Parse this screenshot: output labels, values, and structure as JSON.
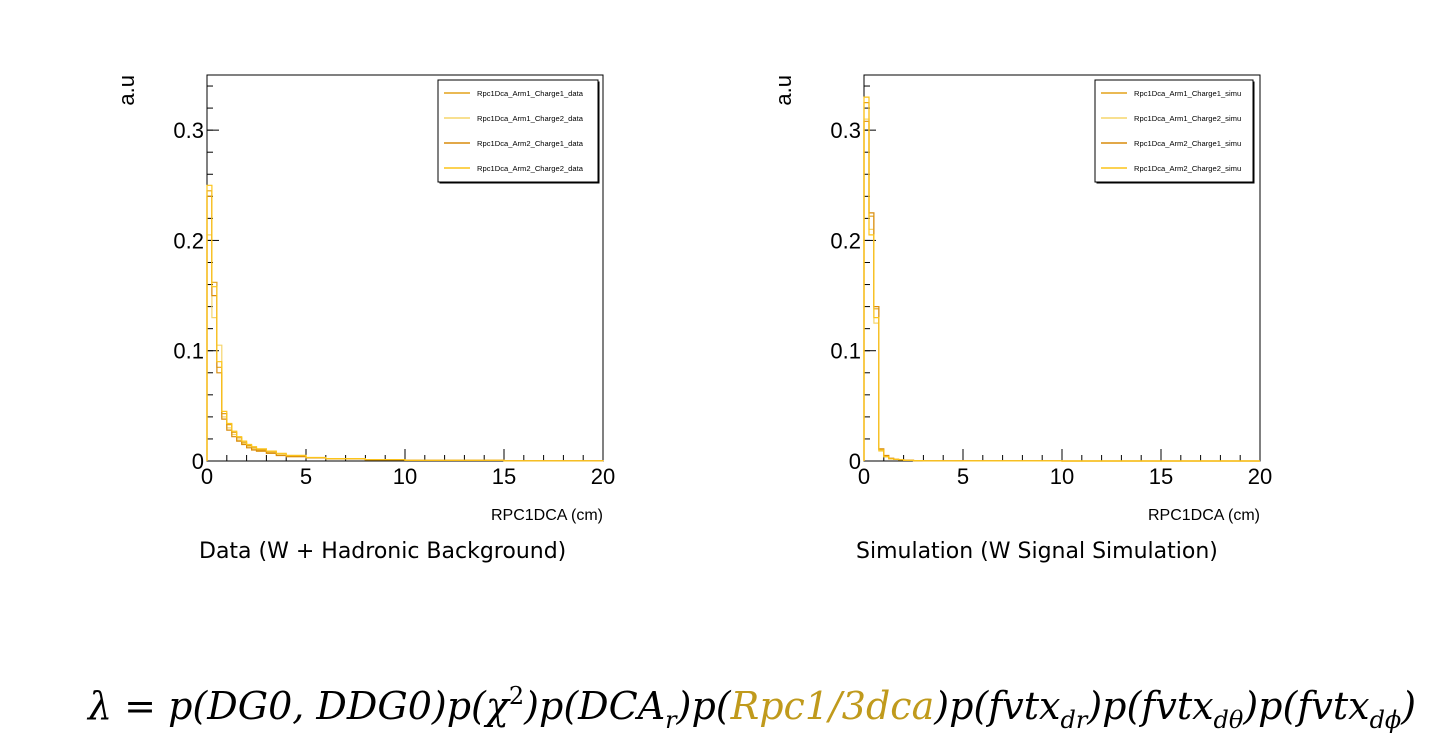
{
  "chart_data": [
    {
      "type": "histogram",
      "xlabel": "RPC1DCA (cm)",
      "ylabel": "a.u",
      "xlim": [
        0,
        20
      ],
      "ylim": [
        0,
        0.35
      ],
      "xticks": [
        "0",
        "5",
        "10",
        "15",
        "20"
      ],
      "yticks": [
        "0",
        "0.1",
        "0.2",
        "0.3"
      ],
      "bin_edges": [
        0,
        0.25,
        0.5,
        0.75,
        1.0,
        1.25,
        1.5,
        1.75,
        2.0,
        2.25,
        2.5,
        3.0,
        3.5,
        4.0,
        5.0,
        6.0,
        8.0,
        10.0,
        15.0,
        20.0
      ],
      "legend_position": "top-right",
      "series": [
        {
          "name": "Rpc1Dca_Arm1_Charge1_data",
          "color": "#e3a21a",
          "values": [
            0.245,
            0.162,
            0.085,
            0.043,
            0.033,
            0.026,
            0.021,
            0.017,
            0.014,
            0.012,
            0.01,
            0.008,
            0.006,
            0.005,
            0.003,
            0.0022,
            0.0012,
            0.0006,
            0.0002
          ]
        },
        {
          "name": "Rpc1Dca_Arm1_Charge2_data",
          "color": "#f5d56c",
          "values": [
            0.205,
            0.13,
            0.105,
            0.04,
            0.03,
            0.024,
            0.019,
            0.016,
            0.013,
            0.011,
            0.009,
            0.007,
            0.006,
            0.004,
            0.003,
            0.002,
            0.001,
            0.0005,
            0.0002
          ]
        },
        {
          "name": "Rpc1Dca_Arm2_Charge1_data",
          "color": "#d98c0c",
          "values": [
            0.24,
            0.15,
            0.08,
            0.038,
            0.028,
            0.022,
            0.018,
            0.015,
            0.012,
            0.01,
            0.009,
            0.007,
            0.005,
            0.004,
            0.0028,
            0.002,
            0.001,
            0.0005,
            0.0002
          ]
        },
        {
          "name": "Rpc1Dca_Arm2_Charge2_data",
          "color": "#fcc419",
          "values": [
            0.25,
            0.158,
            0.09,
            0.045,
            0.034,
            0.027,
            0.022,
            0.018,
            0.015,
            0.013,
            0.011,
            0.009,
            0.007,
            0.005,
            0.0032,
            0.0022,
            0.0012,
            0.0006,
            0.0002
          ]
        }
      ]
    },
    {
      "type": "histogram",
      "xlabel": "RPC1DCA (cm)",
      "ylabel": "a.u",
      "xlim": [
        0,
        20
      ],
      "ylim": [
        0,
        0.35
      ],
      "xticks": [
        "0",
        "5",
        "10",
        "15",
        "20"
      ],
      "yticks": [
        "0",
        "0.1",
        "0.2",
        "0.3"
      ],
      "bin_edges": [
        0,
        0.25,
        0.5,
        0.75,
        1.0,
        1.25,
        1.5,
        1.75,
        2.0,
        2.5,
        3.0,
        5.0,
        10.0,
        20.0
      ],
      "legend_position": "top-right",
      "series": [
        {
          "name": "Rpc1Dca_Arm1_Charge1_simu",
          "color": "#e3a21a",
          "values": [
            0.325,
            0.222,
            0.138,
            0.01,
            0.004,
            0.002,
            0.0015,
            0.001,
            0.0007,
            0.0004,
            0.0002,
            0.0001,
            0.0
          ]
        },
        {
          "name": "Rpc1Dca_Arm1_Charge2_simu",
          "color": "#f5d56c",
          "values": [
            0.31,
            0.21,
            0.125,
            0.009,
            0.004,
            0.002,
            0.0015,
            0.001,
            0.0006,
            0.0004,
            0.0002,
            0.0001,
            0.0
          ]
        },
        {
          "name": "Rpc1Dca_Arm2_Charge1_simu",
          "color": "#d98c0c",
          "values": [
            0.308,
            0.225,
            0.14,
            0.011,
            0.005,
            0.0025,
            0.0015,
            0.001,
            0.0007,
            0.0004,
            0.0002,
            0.0001,
            0.0
          ]
        },
        {
          "name": "Rpc1Dca_Arm2_Charge2_simu",
          "color": "#fcc419",
          "values": [
            0.33,
            0.205,
            0.13,
            0.01,
            0.004,
            0.002,
            0.0015,
            0.001,
            0.0006,
            0.0004,
            0.0002,
            0.0001,
            0.0
          ]
        }
      ]
    }
  ],
  "captions": [
    "Data (W + Hadronic Background)",
    "Simulation (W Signal Simulation)"
  ],
  "formula": {
    "lambda": "λ",
    "equals": " = ",
    "p1": "p(DG0, DDG0)",
    "p2_open": "p(χ",
    "p2_sup": "2",
    "p2_close": ")",
    "p3_open": "p(DCA",
    "p3_sub": "r",
    "p3_close": ")",
    "p4_open": "p(",
    "p4_highlight": "Rpc1/3dca",
    "p4_close": ")",
    "p5_open": "p(fvtx",
    "p5_sub": "dr",
    "p5_close": ")",
    "p6_open": "p(fvtx",
    "p6_sub": "dθ",
    "p6_close": ")",
    "p7_open": "p(fvtx",
    "p7_sub": "dϕ",
    "p7_close": ")",
    "highlight_color": "#c09a1c"
  }
}
